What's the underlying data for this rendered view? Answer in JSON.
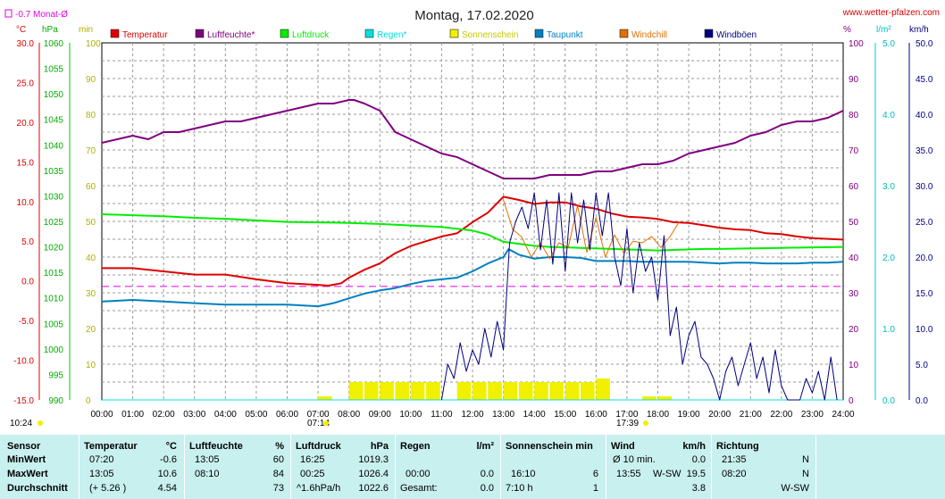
{
  "title": "Montag, 17.02.2020",
  "website": "www.wetter-pfalzen.com",
  "month_avg_label": "-0.7 Monat-Ø",
  "unit_labels": {
    "temp": "°C",
    "pressure": "hPa",
    "sunshine": "min",
    "humidity": "%",
    "rain": "l/m²",
    "wind": "km/h"
  },
  "legend": [
    {
      "label": "Temperatur",
      "color": "#dd0000"
    },
    {
      "label": "Luftfeuchte*",
      "color": "#800080"
    },
    {
      "label": "Luftdruck",
      "color": "#00ee00"
    },
    {
      "label": "Regen*",
      "color": "#00e0e0"
    },
    {
      "label": "Sonnenschein",
      "color": "#f0f000"
    },
    {
      "label": "Taupunkt",
      "color": "#0080c0"
    },
    {
      "label": "Windchill",
      "color": "#e07000"
    },
    {
      "label": "Windböen",
      "color": "#000080"
    }
  ],
  "sunrise_label": "07:14",
  "sunset_label": "17:39",
  "current_time_label": "10:24",
  "chart_data": {
    "type": "line",
    "title": "Montag, 17.02.2020",
    "x_unit": "hours",
    "xlim": [
      0,
      24
    ],
    "x_ticks": [
      "00:00",
      "01:00",
      "02:00",
      "03:00",
      "04:00",
      "05:00",
      "06:00",
      "07:00",
      "08:00",
      "09:00",
      "10:00",
      "11:00",
      "12:00",
      "13:00",
      "14:00",
      "15:00",
      "16:00",
      "17:00",
      "18:00",
      "19:00",
      "20:00",
      "21:00",
      "22:00",
      "23:00",
      "24:00"
    ],
    "axes": {
      "temperature": {
        "label": "°C",
        "range": [
          -15,
          30
        ],
        "ticks": [
          "30.0",
          "25.0",
          "20.0",
          "15.0",
          "10.0",
          "5.0",
          "0.0",
          "-5.0",
          "-10.0",
          "-15.0"
        ]
      },
      "pressure": {
        "label": "hPa",
        "range": [
          990,
          1060
        ],
        "ticks": [
          "1060",
          "1055",
          "1050",
          "1045",
          "1040",
          "1035",
          "1030",
          "1025",
          "1020",
          "1015",
          "1010",
          "1005",
          "1000",
          "995",
          "990"
        ]
      },
      "sunshine": {
        "label": "min",
        "range": [
          0,
          100
        ],
        "ticks": [
          "100",
          "90",
          "80",
          "70",
          "60",
          "50",
          "40",
          "30",
          "20",
          "10",
          "0"
        ]
      },
      "humidity": {
        "label": "%",
        "range": [
          0,
          100
        ],
        "ticks": [
          "100",
          "90",
          "80",
          "70",
          "60",
          "50",
          "40",
          "30",
          "20",
          "10",
          "0"
        ]
      },
      "rain": {
        "label": "l/m²",
        "range": [
          0,
          5
        ],
        "ticks": [
          "5.0",
          "4.0",
          "3.0",
          "2.0",
          "1.0",
          "0.0"
        ]
      },
      "wind": {
        "label": "km/h",
        "range": [
          0,
          50
        ],
        "ticks": [
          "50.0",
          "45.0",
          "40.0",
          "35.0",
          "30.0",
          "25.0",
          "20.0",
          "15.0",
          "10.0",
          "5.0",
          "0.0"
        ]
      }
    },
    "month_avg_temp": -0.7,
    "series": [
      {
        "name": "Temperatur",
        "axis": "temperature",
        "color": "#dd0000",
        "x": [
          0,
          1,
          2,
          3,
          4,
          5,
          6,
          7,
          7.33,
          7.75,
          8,
          8.5,
          9,
          9.5,
          10,
          10.5,
          11,
          11.5,
          12,
          12.5,
          13,
          13.5,
          14,
          14.5,
          15,
          15.5,
          16,
          16.5,
          17,
          17.5,
          18,
          18.5,
          19,
          19.5,
          20,
          20.5,
          21,
          21.5,
          22,
          22.5,
          23,
          23.5,
          24
        ],
        "y": [
          1.6,
          1.6,
          1.2,
          0.8,
          0.8,
          0.2,
          -0.3,
          -0.5,
          -0.6,
          -0.3,
          0.4,
          1.4,
          2.2,
          3.5,
          4.4,
          5.0,
          5.6,
          6.0,
          7.4,
          8.6,
          10.6,
          10.2,
          9.7,
          9.9,
          9.9,
          9.4,
          9.1,
          8.5,
          8.1,
          8.0,
          7.8,
          7.4,
          7.3,
          7.0,
          6.7,
          6.5,
          6.4,
          6.0,
          5.9,
          5.6,
          5.4,
          5.3,
          5.2
        ]
      },
      {
        "name": "Luftfeuchte*",
        "axis": "humidity",
        "color": "#800080",
        "x": [
          0,
          0.5,
          1,
          1.5,
          2,
          2.5,
          3,
          3.5,
          4,
          4.5,
          5,
          5.5,
          6,
          6.5,
          7,
          7.5,
          8,
          8.17,
          8.5,
          9,
          9.5,
          10,
          10.5,
          11,
          11.5,
          12,
          12.5,
          13,
          13.5,
          14,
          14.5,
          15,
          15.5,
          16,
          16.5,
          17,
          17.5,
          18,
          18.5,
          19,
          19.5,
          20,
          20.5,
          21,
          21.5,
          22,
          22.5,
          23,
          23.5,
          24
        ],
        "y": [
          72,
          73,
          74,
          73,
          75,
          75,
          76,
          77,
          78,
          78,
          79,
          80,
          81,
          82,
          83,
          83,
          84,
          84,
          83,
          81,
          75,
          73,
          71,
          69,
          68,
          66,
          64,
          62,
          62,
          62,
          63,
          63,
          63,
          64,
          64,
          65,
          66,
          66,
          67,
          69,
          70,
          71,
          72,
          74,
          75,
          77,
          78,
          78,
          79,
          81
        ]
      },
      {
        "name": "Luftdruck",
        "axis": "pressure",
        "color": "#00ee00",
        "x": [
          0,
          1,
          2,
          3,
          4,
          5,
          6,
          7,
          8,
          9,
          10,
          11,
          12,
          12.5,
          13,
          13.5,
          14,
          14.5,
          15,
          15.5,
          16,
          16.5,
          17,
          17.5,
          18,
          18.5,
          19,
          19.5,
          20,
          21,
          22,
          23,
          24
        ],
        "y": [
          1026.4,
          1026.2,
          1026.0,
          1025.7,
          1025.5,
          1025.2,
          1024.9,
          1024.8,
          1024.7,
          1024.5,
          1024.2,
          1023.9,
          1023.2,
          1022.4,
          1021.0,
          1020.6,
          1020.2,
          1020.0,
          1019.9,
          1019.8,
          1019.7,
          1019.6,
          1019.5,
          1019.4,
          1019.3,
          1019.4,
          1019.5,
          1019.6,
          1019.6,
          1019.7,
          1019.8,
          1019.9,
          1020.0
        ]
      },
      {
        "name": "Regen*",
        "axis": "rain",
        "color": "#00e0e0",
        "x": [
          0,
          24
        ],
        "y": [
          0,
          0
        ]
      },
      {
        "name": "Taupunkt",
        "axis": "temperature",
        "color": "#0080c0",
        "x": [
          0,
          1,
          2,
          3,
          4,
          5,
          6,
          7,
          7.5,
          8,
          8.5,
          9,
          9.5,
          10,
          10.5,
          11,
          11.5,
          12,
          12.5,
          13,
          13.17,
          13.5,
          14,
          14.5,
          15,
          15.5,
          16,
          16.5,
          17,
          17.5,
          18,
          18.5,
          19,
          19.5,
          20,
          20.5,
          21,
          21.5,
          22,
          22.5,
          23,
          23.5,
          24
        ],
        "y": [
          -2.6,
          -2.4,
          -2.6,
          -2.8,
          -3.0,
          -3.0,
          -3.0,
          -3.2,
          -2.8,
          -2.2,
          -1.6,
          -1.2,
          -0.9,
          -0.4,
          0.0,
          0.2,
          0.4,
          1.2,
          2.2,
          3.0,
          4.0,
          3.3,
          2.8,
          3.0,
          3.0,
          2.9,
          2.5,
          2.5,
          2.5,
          2.4,
          2.4,
          2.4,
          2.4,
          2.3,
          2.2,
          2.3,
          2.3,
          2.2,
          2.2,
          2.2,
          2.3,
          2.3,
          2.4
        ]
      },
      {
        "name": "Windchill",
        "axis": "temperature",
        "color": "#e07000",
        "x": [
          13,
          13.3,
          13.6,
          13.9,
          14.2,
          14.5,
          14.8,
          15.1,
          15.4,
          15.7,
          16,
          16.3,
          16.6,
          16.9,
          17.2,
          17.5,
          17.8,
          18.1,
          18.4,
          18.7
        ],
        "y": [
          10.2,
          6.5,
          5.5,
          3.0,
          4.8,
          2.8,
          4.8,
          4.2,
          9.5,
          3.6,
          8.0,
          3.0,
          5.8,
          3.5,
          5.0,
          4.8,
          5.6,
          4.2,
          5.6,
          7.5
        ]
      },
      {
        "name": "Windböen",
        "axis": "wind",
        "color": "#000080",
        "x": [
          11,
          11.2,
          11.4,
          11.6,
          11.8,
          12,
          12.2,
          12.4,
          12.6,
          12.8,
          13,
          13.2,
          13.4,
          13.6,
          13.8,
          14,
          14.2,
          14.4,
          14.6,
          14.8,
          15,
          15.2,
          15.4,
          15.6,
          15.8,
          16,
          16.2,
          16.4,
          16.6,
          16.8,
          17,
          17.2,
          17.4,
          17.6,
          17.8,
          18,
          18.2,
          18.4,
          18.6,
          18.8,
          19,
          19.2,
          19.4,
          19.6,
          19.8,
          20,
          20.2,
          20.4,
          20.6,
          20.8,
          21,
          21.2,
          21.4,
          21.6,
          21.8,
          22,
          22.2,
          22.4,
          22.6,
          22.8,
          23,
          23.2,
          23.4,
          23.6,
          23.8
        ],
        "y": [
          0,
          5,
          3,
          8,
          4,
          7,
          5,
          10,
          6,
          11,
          7,
          22,
          25,
          27,
          24,
          29,
          21,
          28,
          19,
          29,
          18,
          29,
          22,
          28,
          21,
          29,
          23,
          29,
          20,
          16,
          24,
          15,
          22,
          18,
          20,
          14,
          23,
          9,
          13,
          5,
          9,
          11,
          6,
          5,
          3,
          0,
          4,
          6,
          2,
          5,
          8,
          3,
          6,
          1,
          7,
          2,
          0,
          0,
          0,
          3,
          1,
          4,
          0,
          6,
          0
        ]
      },
      {
        "name": "Sonnenschein",
        "axis": "sunshine",
        "color": "#f0f000",
        "type": "bar",
        "x": [
          7.0,
          8.0,
          8.5,
          9.0,
          9.5,
          10.0,
          10.5,
          11.5,
          12.0,
          12.5,
          13.0,
          13.5,
          14.0,
          14.5,
          15.0,
          15.5,
          16.0,
          17.5,
          18.0
        ],
        "y": [
          1,
          5,
          5,
          5,
          5,
          5,
          5,
          5,
          5,
          5,
          5,
          5,
          5,
          5,
          5,
          5,
          6,
          1,
          1
        ]
      }
    ]
  },
  "stats": {
    "headers": {
      "sensor": "Sensor",
      "temp": "Temperatur",
      "temp_unit": "°C",
      "hum": "Luftfeuchte",
      "hum_unit": "%",
      "press": "Luftdruck",
      "press_unit": "hPa",
      "rain": "Regen",
      "rain_unit": "l/m²",
      "sun": "Sonnenschein min",
      "wind": "Wind",
      "wind_unit": "km/h",
      "dir": "Richtung"
    },
    "rows": [
      {
        "label": "MinWert",
        "temp_time": "07:20",
        "temp": "-0.6",
        "hum_time": "13:05",
        "hum": "60",
        "press_time": "16:25",
        "press": "1019.3",
        "rain_time": "",
        "rain": "",
        "sun_time": "",
        "sun": "",
        "wind_time": "Ø 10 min.",
        "wind_dir": "",
        "wind": "0.0",
        "dir_time": "21:35",
        "dir": "N"
      },
      {
        "label": "MaxWert",
        "temp_time": "13:05",
        "temp": "10.6",
        "hum_time": "08:10",
        "hum": "84",
        "press_time": "00:25",
        "press": "1026.4",
        "rain_time": "00:00",
        "rain": "0.0",
        "sun_time": "16:10",
        "sun": "6",
        "wind_time": "13:55",
        "wind_dir": "W-SW",
        "wind": "19.5",
        "dir_time": "08:20",
        "dir": "N"
      },
      {
        "label": "Durchschnitt",
        "temp_time": "(+ 5.26 )",
        "temp": "4.54",
        "hum_time": "",
        "hum": "73",
        "press_time": "^1.6hPa/h",
        "press": "1022.6",
        "rain_time": "Gesamt:",
        "rain": "0.0",
        "sun_time": "7:10 h",
        "sun": "1",
        "wind_time": "",
        "wind_dir": "",
        "wind": "3.8",
        "dir_time": "",
        "dir": "W-SW"
      }
    ]
  }
}
